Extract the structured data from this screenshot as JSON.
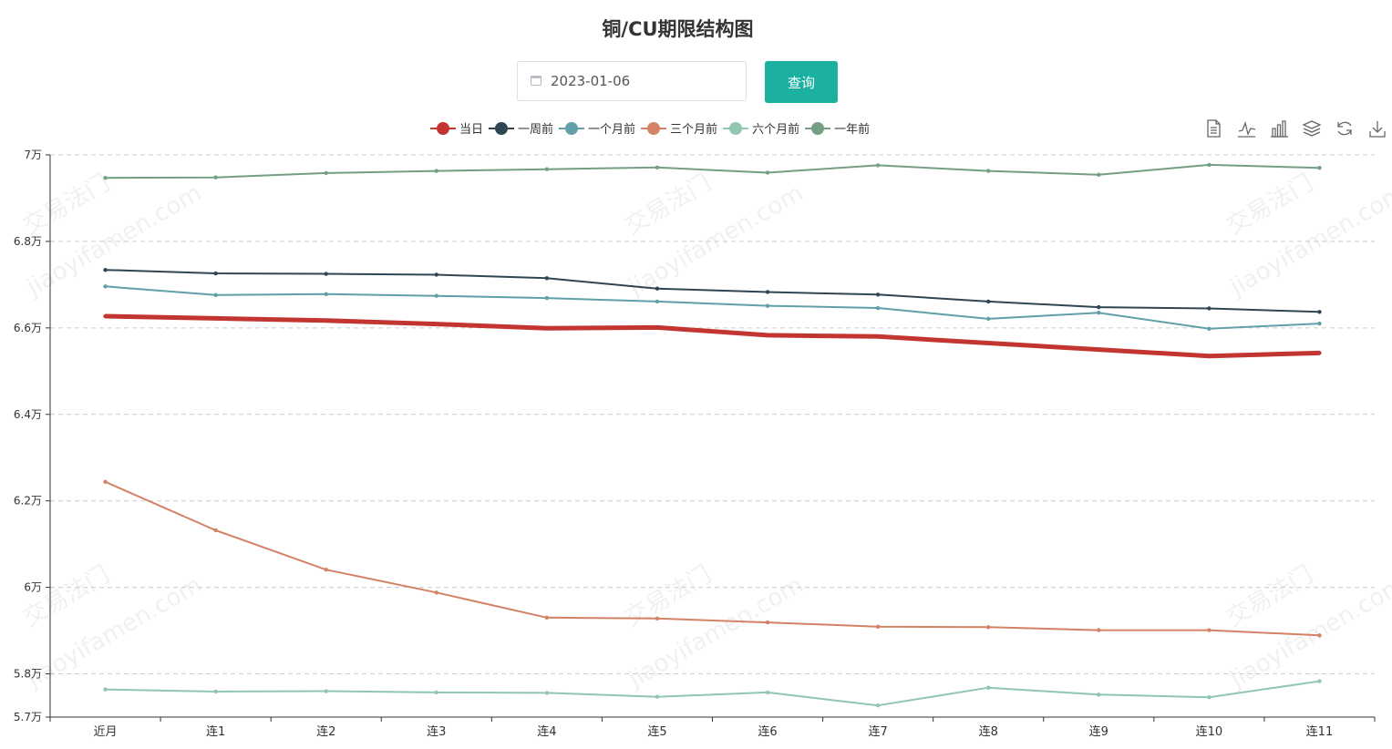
{
  "chart_data": {
    "type": "line",
    "title": "铜/CU期限结构图",
    "categories": [
      "近月",
      "连1",
      "连2",
      "连3",
      "连4",
      "连5",
      "连6",
      "连7",
      "连8",
      "连9",
      "连10",
      "连11"
    ],
    "ylim": [
      57000,
      70000
    ],
    "yticks": [
      57000,
      58000,
      60000,
      62000,
      64000,
      66000,
      68000,
      70000
    ],
    "ytick_labels": [
      "5.7万",
      "5.8万",
      "6万",
      "6.2万",
      "6.4万",
      "6.6万",
      "6.8万",
      "7万"
    ],
    "grid": true,
    "legend_position": "top",
    "series": [
      {
        "name": "当日",
        "color": "#c23531",
        "width": 5,
        "values": [
          66270,
          66220,
          66170,
          66090,
          65990,
          66010,
          65830,
          65800,
          65650,
          65500,
          65350,
          65420
        ]
      },
      {
        "name": "一周前",
        "color": "#2f4554",
        "width": 2,
        "values": [
          67340,
          67260,
          67250,
          67230,
          67150,
          66910,
          66830,
          66770,
          66610,
          66480,
          66450,
          66370
        ]
      },
      {
        "name": "一个月前",
        "color": "#61a0a8",
        "width": 2,
        "values": [
          66960,
          66760,
          66780,
          66740,
          66690,
          66610,
          66510,
          66460,
          66210,
          66350,
          65980,
          66100
        ]
      },
      {
        "name": "三个月前",
        "color": "#d48265",
        "width": 2,
        "values": [
          62440,
          61320,
          60410,
          59880,
          59300,
          59280,
          59190,
          59090,
          59080,
          59010,
          59010,
          58890
        ]
      },
      {
        "name": "六个月前",
        "color": "#91c7ae",
        "width": 2,
        "values": [
          57640,
          57590,
          57600,
          57570,
          57560,
          57470,
          57570,
          57270,
          57680,
          57520,
          57460,
          57830
        ]
      },
      {
        "name": "一年前",
        "color": "#749f83",
        "width": 2,
        "values": [
          69470,
          69480,
          69580,
          69630,
          69670,
          69710,
          69590,
          69760,
          69630,
          69540,
          69770,
          69700
        ]
      }
    ]
  },
  "controls": {
    "date_value": "2023-01-06",
    "query_label": "查询"
  },
  "toolbox": [
    "data-view-icon",
    "line-switch-icon",
    "bar-switch-icon",
    "stack-icon",
    "restore-icon",
    "save-image-icon"
  ],
  "watermark": {
    "cn": "交易法门",
    "en": "jiaoyifamen.com"
  }
}
